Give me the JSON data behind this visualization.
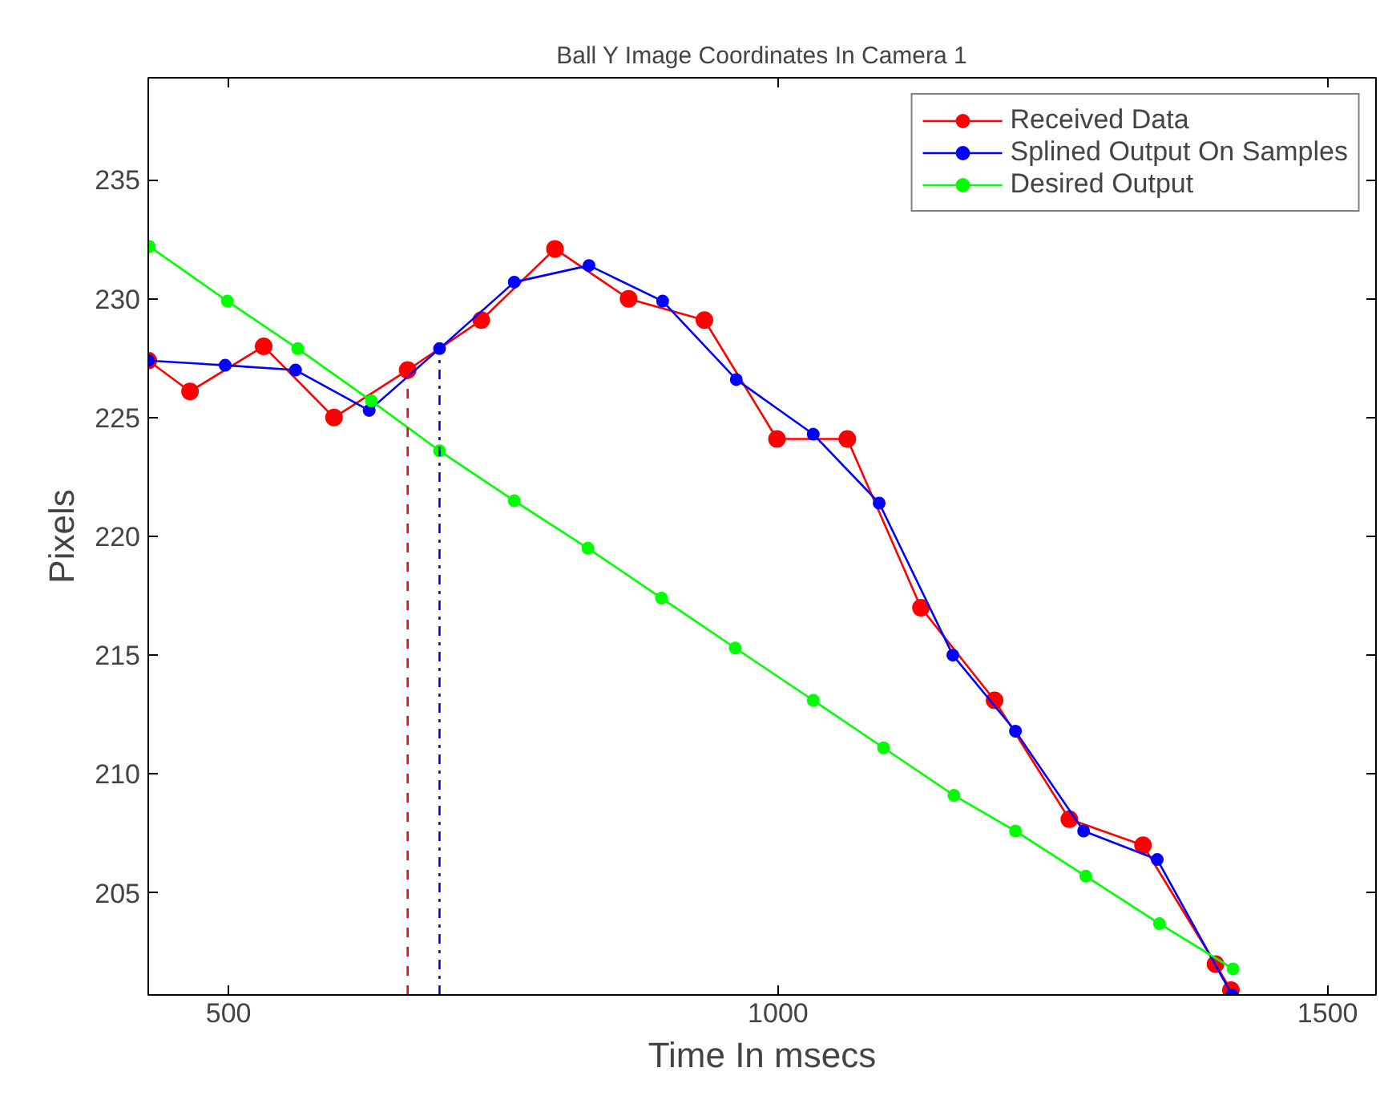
{
  "chart_data": {
    "type": "line",
    "title": "Ball Y Image Coordinates In Camera 1",
    "xlabel": "Time In msecs",
    "ylabel": "Pixels",
    "xlim": [
      427,
      1544
    ],
    "ylim": [
      200.7,
      239.3
    ],
    "xticks": [
      500,
      1000,
      1500
    ],
    "yticks": [
      205,
      210,
      215,
      220,
      225,
      230,
      235
    ],
    "grid": false,
    "legend": "top right",
    "marker": "circle",
    "line_style": "solid",
    "series": [
      {
        "name": "Received Data",
        "color": "#ff0000",
        "x": [
          427,
          465,
          532,
          596,
          663,
          730,
          797,
          864,
          933,
          999,
          1063,
          1130,
          1197,
          1265,
          1332,
          1398,
          1412
        ],
        "values": [
          227.4,
          226.1,
          228.0,
          225.0,
          227.0,
          229.1,
          232.1,
          230.0,
          229.1,
          224.1,
          224.1,
          217.0,
          213.1,
          208.1,
          207.0,
          202.0,
          200.9
        ]
      },
      {
        "name": "Splined Output On Samples",
        "color": "#0000ff",
        "x": [
          427,
          497,
          561,
          628,
          692,
          760,
          828,
          895,
          962,
          1032,
          1092,
          1159,
          1216,
          1278,
          1345,
          1413
        ],
        "values": [
          227.4,
          227.2,
          227.0,
          225.3,
          227.9,
          230.7,
          231.4,
          229.9,
          226.6,
          224.3,
          221.4,
          215.0,
          211.8,
          207.6,
          206.4,
          200.7
        ]
      },
      {
        "name": "Desired Output",
        "color": "#00ff00",
        "x": [
          428,
          499,
          563,
          630,
          692,
          760,
          827,
          894,
          961,
          1032,
          1096,
          1160,
          1216,
          1280,
          1347,
          1414
        ],
        "values": [
          232.2,
          229.9,
          227.9,
          225.7,
          223.6,
          221.5,
          219.5,
          217.4,
          215.3,
          213.1,
          211.1,
          209.1,
          207.6,
          205.7,
          203.7,
          201.8
        ]
      },
      {
        "color": "#ff0000",
        "x": [
          663,
          663
        ],
        "values": [
          200.7,
          227.0
        ],
        "marker": "none",
        "line_style": "dashed"
      },
      {
        "color": "#0000ff",
        "x": [
          692,
          692
        ],
        "values": [
          200.7,
          227.9
        ],
        "marker": "none",
        "line_style": "dashdot"
      }
    ]
  }
}
